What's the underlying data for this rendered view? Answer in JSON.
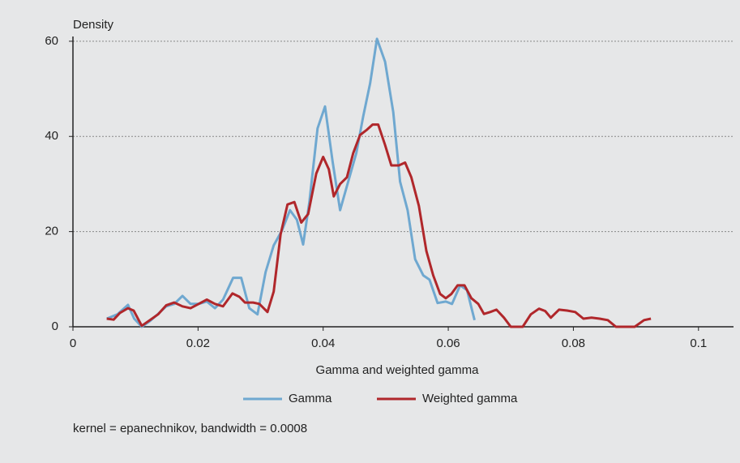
{
  "chart_data": {
    "type": "line",
    "y_label": "Density",
    "x_label": "Gamma and weighted gamma",
    "note": "kernel = epanechnikov, bandwidth = 0.0008",
    "xlim": [
      0,
      0.1056
    ],
    "ylim": [
      0,
      61
    ],
    "xticks": [
      0,
      0.02,
      0.04,
      0.06,
      0.08,
      0.1
    ],
    "yticks": [
      0,
      20,
      40,
      60
    ],
    "grid": true,
    "legend": "bottom",
    "series": [
      {
        "name": "Gamma",
        "color": "#6fa8d0",
        "x": [
          0.0054,
          0.0071,
          0.0088,
          0.0098,
          0.011,
          0.0123,
          0.0136,
          0.0149,
          0.0162,
          0.0175,
          0.0188,
          0.0201,
          0.0214,
          0.0227,
          0.024,
          0.0256,
          0.0269,
          0.0282,
          0.0295,
          0.0308,
          0.0321,
          0.0334,
          0.0347,
          0.0358,
          0.0368,
          0.0378,
          0.0391,
          0.0403,
          0.0415,
          0.0427,
          0.044,
          0.0453,
          0.0464,
          0.0475,
          0.0486,
          0.0499,
          0.0512,
          0.0523,
          0.0535,
          0.0547,
          0.056,
          0.057,
          0.0583,
          0.0596,
          0.0606,
          0.0619,
          0.063,
          0.0642
        ],
        "values": [
          1.7,
          2.6,
          4.6,
          1.7,
          0,
          1.2,
          2.7,
          4.3,
          4.8,
          6.5,
          4.8,
          4.8,
          5.3,
          3.9,
          5.7,
          10.3,
          10.3,
          3.9,
          2.6,
          11.5,
          17.1,
          20.2,
          24.5,
          22.5,
          17.3,
          26.2,
          41.7,
          46.3,
          34.8,
          24.5,
          30.5,
          36.5,
          44.2,
          51.1,
          60.5,
          55.7,
          45.1,
          30.5,
          24.5,
          14.2,
          10.8,
          9.9,
          5.0,
          5.3,
          4.8,
          8.7,
          7.7,
          1.4
        ]
      },
      {
        "name": "Weighted gamma",
        "color": "#b0272b",
        "x": [
          0.0054,
          0.0065,
          0.0075,
          0.0088,
          0.0097,
          0.011,
          0.0123,
          0.0136,
          0.0149,
          0.0162,
          0.0175,
          0.0188,
          0.0201,
          0.0214,
          0.0227,
          0.024,
          0.0255,
          0.0266,
          0.0275,
          0.0288,
          0.0298,
          0.0311,
          0.0321,
          0.0332,
          0.0343,
          0.0354,
          0.0365,
          0.0376,
          0.0389,
          0.04,
          0.0409,
          0.0417,
          0.0427,
          0.0438,
          0.0448,
          0.0459,
          0.0469,
          0.0479,
          0.0488,
          0.0499,
          0.0509,
          0.0521,
          0.0531,
          0.0541,
          0.0553,
          0.0565,
          0.0576,
          0.0587,
          0.0596,
          0.0605,
          0.0615,
          0.0626,
          0.0637,
          0.0648,
          0.0657,
          0.0667,
          0.0677,
          0.0689,
          0.07,
          0.0719,
          0.0732,
          0.0745,
          0.0755,
          0.0764,
          0.0777,
          0.079,
          0.0803,
          0.0816,
          0.0829,
          0.0842,
          0.0855,
          0.0868,
          0.0898,
          0.0913,
          0.0924
        ],
        "values": [
          1.7,
          1.5,
          2.9,
          3.9,
          3.4,
          0.2,
          1.4,
          2.6,
          4.5,
          5.1,
          4.3,
          3.9,
          4.8,
          5.7,
          4.8,
          4.3,
          7.0,
          6.3,
          5.1,
          5.1,
          4.8,
          3.1,
          7.4,
          19.4,
          25.7,
          26.2,
          21.9,
          23.7,
          32.2,
          35.7,
          33.1,
          27.4,
          30.0,
          31.4,
          36.5,
          40.3,
          41.3,
          42.5,
          42.5,
          38.2,
          33.9,
          33.9,
          34.5,
          31.4,
          25.4,
          15.9,
          10.8,
          6.9,
          6.0,
          6.9,
          8.7,
          8.7,
          6.0,
          4.8,
          2.7,
          3.1,
          3.6,
          1.9,
          0,
          0,
          2.6,
          3.8,
          3.3,
          1.9,
          3.6,
          3.4,
          3.1,
          1.7,
          1.9,
          1.7,
          1.4,
          0,
          0,
          1.4,
          1.7
        ]
      }
    ]
  }
}
